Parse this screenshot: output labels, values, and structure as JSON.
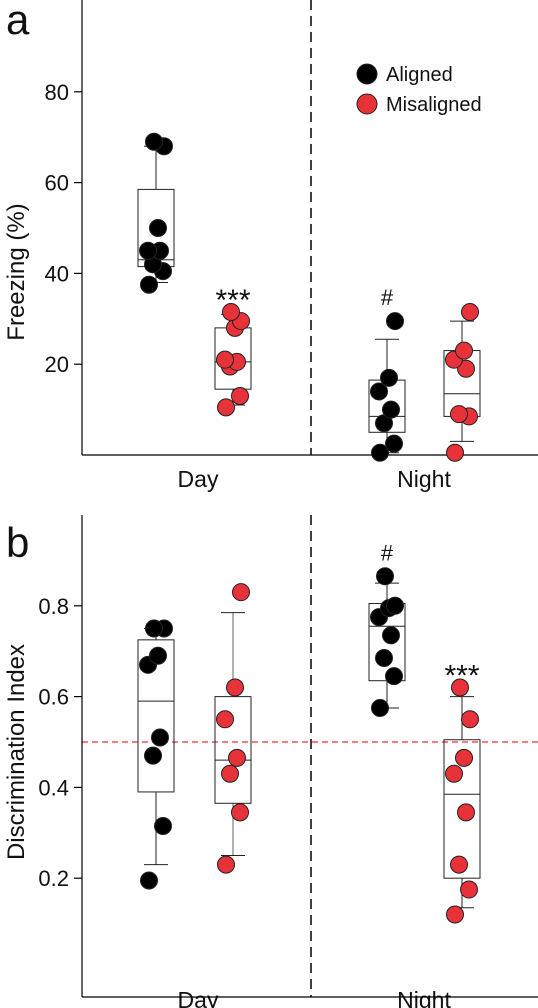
{
  "legend": {
    "items": [
      {
        "label": "Aligned",
        "color": "#000000"
      },
      {
        "label": "Misaligned",
        "color": "#e8323a"
      }
    ]
  },
  "chart_data": [
    {
      "panel_label": "a",
      "type": "box",
      "ylabel": "Freezing (%)",
      "ylim": [
        0,
        100
      ],
      "yticks": [
        20,
        40,
        60,
        80
      ],
      "categories": [
        "Day",
        "Night"
      ],
      "legend_position": "top-right",
      "series": [
        {
          "name": "Aligned",
          "color": "#000000"
        },
        {
          "name": "Misaligned",
          "color": "#e8323a"
        }
      ],
      "groups": [
        {
          "category": "Day",
          "series": "Aligned",
          "box": {
            "whisker_low": 38,
            "q1": 41.5,
            "median": 43,
            "q3": 58.5,
            "whisker_high": 68
          },
          "points": [
            37.5,
            40.5,
            42,
            45,
            45,
            50,
            68,
            69
          ],
          "annotation": ""
        },
        {
          "category": "Day",
          "series": "Misaligned",
          "box": {
            "whisker_low": 11,
            "q1": 14.5,
            "median": 20.5,
            "q3": 28,
            "whisker_high": 31
          },
          "points": [
            10.5,
            13,
            19.5,
            20.5,
            21,
            28,
            29.5,
            31.5
          ],
          "annotation": "***"
        },
        {
          "category": "Night",
          "series": "Aligned",
          "box": {
            "whisker_low": 0.5,
            "q1": 5,
            "median": 8.5,
            "q3": 16.5,
            "whisker_high": 25.5
          },
          "points": [
            0.5,
            2.5,
            7,
            10,
            14,
            17,
            29.5
          ],
          "annotation": "#"
        },
        {
          "category": "Night",
          "series": "Misaligned",
          "box": {
            "whisker_low": 3,
            "q1": 8.5,
            "median": 13.5,
            "q3": 23,
            "whisker_high": 29.5
          },
          "points": [
            0.5,
            8.5,
            9,
            19,
            21,
            23,
            31.5
          ],
          "annotation": ""
        }
      ]
    },
    {
      "panel_label": "b",
      "type": "box",
      "ylabel": "Discrimination Index",
      "ylim": [
        0.1,
        1.0
      ],
      "yticks": [
        0.2,
        0.4,
        0.6,
        0.8
      ],
      "ytick_labels": [
        "0.2",
        "0.4",
        "0.6",
        "0.8"
      ],
      "categories": [
        "Day",
        "Night"
      ],
      "reference_line": {
        "y": 0.5,
        "color": "#e8323a",
        "style": "dashed"
      },
      "series": [
        {
          "name": "Aligned",
          "color": "#000000"
        },
        {
          "name": "Misaligned",
          "color": "#e8323a"
        }
      ],
      "groups": [
        {
          "category": "Day",
          "series": "Aligned",
          "box": {
            "whisker_low": 0.23,
            "q1": 0.39,
            "median": 0.59,
            "q3": 0.725,
            "whisker_high": 0.75
          },
          "points": [
            0.195,
            0.315,
            0.47,
            0.51,
            0.67,
            0.69,
            0.75,
            0.75
          ],
          "annotation": ""
        },
        {
          "category": "Day",
          "series": "Misaligned",
          "box": {
            "whisker_low": 0.25,
            "q1": 0.365,
            "median": 0.46,
            "q3": 0.6,
            "whisker_high": 0.785
          },
          "points": [
            0.23,
            0.345,
            0.43,
            0.465,
            0.55,
            0.62,
            0.83
          ],
          "annotation": ""
        },
        {
          "category": "Night",
          "series": "Aligned",
          "box": {
            "whisker_low": 0.575,
            "q1": 0.635,
            "median": 0.755,
            "q3": 0.805,
            "whisker_high": 0.85
          },
          "points": [
            0.575,
            0.645,
            0.685,
            0.735,
            0.775,
            0.795,
            0.8,
            0.865
          ],
          "annotation": "#"
        },
        {
          "category": "Night",
          "series": "Misaligned",
          "box": {
            "whisker_low": 0.135,
            "q1": 0.2,
            "median": 0.385,
            "q3": 0.505,
            "whisker_high": 0.6
          },
          "points": [
            0.12,
            0.175,
            0.23,
            0.345,
            0.43,
            0.465,
            0.55,
            0.62
          ],
          "annotation": "***"
        }
      ]
    }
  ]
}
